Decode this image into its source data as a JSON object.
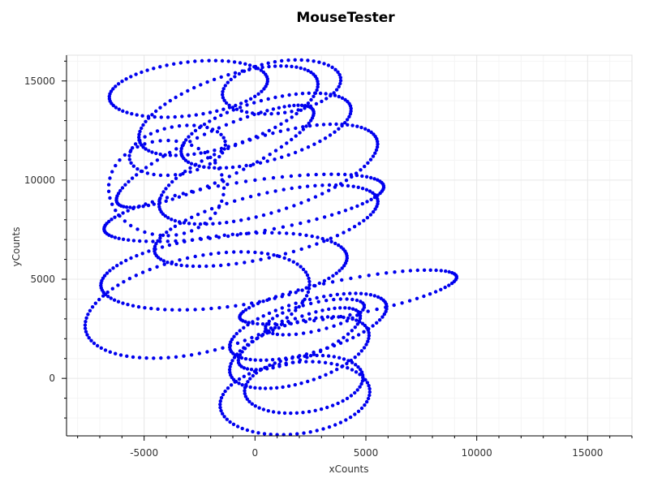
{
  "chart_data": {
    "type": "scatter",
    "title": "MouseTester",
    "xlabel": "xCounts",
    "ylabel": "yCounts",
    "xlim": [
      -8500,
      17000
    ],
    "ylim": [
      -2900,
      16300
    ],
    "xticks": [
      -5000,
      0,
      5000,
      10000,
      15000
    ],
    "yticks": [
      0,
      5000,
      10000,
      15000
    ],
    "grid": true,
    "legend": "none",
    "colors": {
      "points": "#0000ee",
      "grid": "#e8e8e8",
      "axis": "#000000"
    },
    "series": [
      {
        "loops": [
          {
            "cx": -3000,
            "cy": 14600,
            "rx": 3600,
            "ry": 1350,
            "rot": 8,
            "n": 70
          },
          {
            "cx": 1200,
            "cy": 14700,
            "rx": 2700,
            "ry": 1300,
            "rot": 10,
            "n": 55
          },
          {
            "cx": -1200,
            "cy": 13500,
            "rx": 4300,
            "ry": 1700,
            "rot": 22,
            "n": 80
          },
          {
            "cx": 500,
            "cy": 12500,
            "rx": 4000,
            "ry": 1500,
            "rot": 18,
            "n": 75
          },
          {
            "cx": -1800,
            "cy": 11200,
            "rx": 5000,
            "ry": 1200,
            "rot": 28,
            "n": 85
          },
          {
            "cx": 600,
            "cy": 10300,
            "rx": 5200,
            "ry": 1900,
            "rot": 20,
            "n": 90
          },
          {
            "cx": -500,
            "cy": 8600,
            "rx": 6400,
            "ry": 1300,
            "rot": 10,
            "n": 95
          },
          {
            "cx": 500,
            "cy": 7700,
            "rx": 5200,
            "ry": 1600,
            "rot": 15,
            "n": 85
          },
          {
            "cx": -1400,
            "cy": 5400,
            "rx": 5600,
            "ry": 1800,
            "rot": 8,
            "n": 95
          },
          {
            "cx": -2600,
            "cy": 3700,
            "rx": 5200,
            "ry": 2400,
            "rot": 15,
            "n": 90
          },
          {
            "cx": 4200,
            "cy": 4100,
            "rx": 5000,
            "ry": 900,
            "rot": 12,
            "n": 75
          },
          {
            "cx": 2400,
            "cy": 2600,
            "rx": 3700,
            "ry": 1300,
            "rot": 18,
            "n": 70
          },
          {
            "cx": 2000,
            "cy": 1300,
            "rx": 3300,
            "ry": 1500,
            "rot": 20,
            "n": 70
          },
          {
            "cx": 2200,
            "cy": -300,
            "rx": 2700,
            "ry": 1400,
            "rot": 10,
            "n": 60
          },
          {
            "cx": 1800,
            "cy": -1000,
            "rx": 3400,
            "ry": 1800,
            "rot": 8,
            "n": 70
          },
          {
            "cx": 2000,
            "cy": 2000,
            "rx": 3000,
            "ry": 1000,
            "rot": 25,
            "n": 55
          },
          {
            "cx": -4000,
            "cy": 9600,
            "rx": 2600,
            "ry": 2400,
            "rot": 0,
            "n": 45
          },
          {
            "cx": -3500,
            "cy": 11500,
            "rx": 2200,
            "ry": 1200,
            "rot": 12,
            "n": 40
          },
          {
            "cx": 2700,
            "cy": 3100,
            "rx": 2300,
            "ry": 700,
            "rot": 15,
            "n": 40
          }
        ]
      }
    ]
  }
}
